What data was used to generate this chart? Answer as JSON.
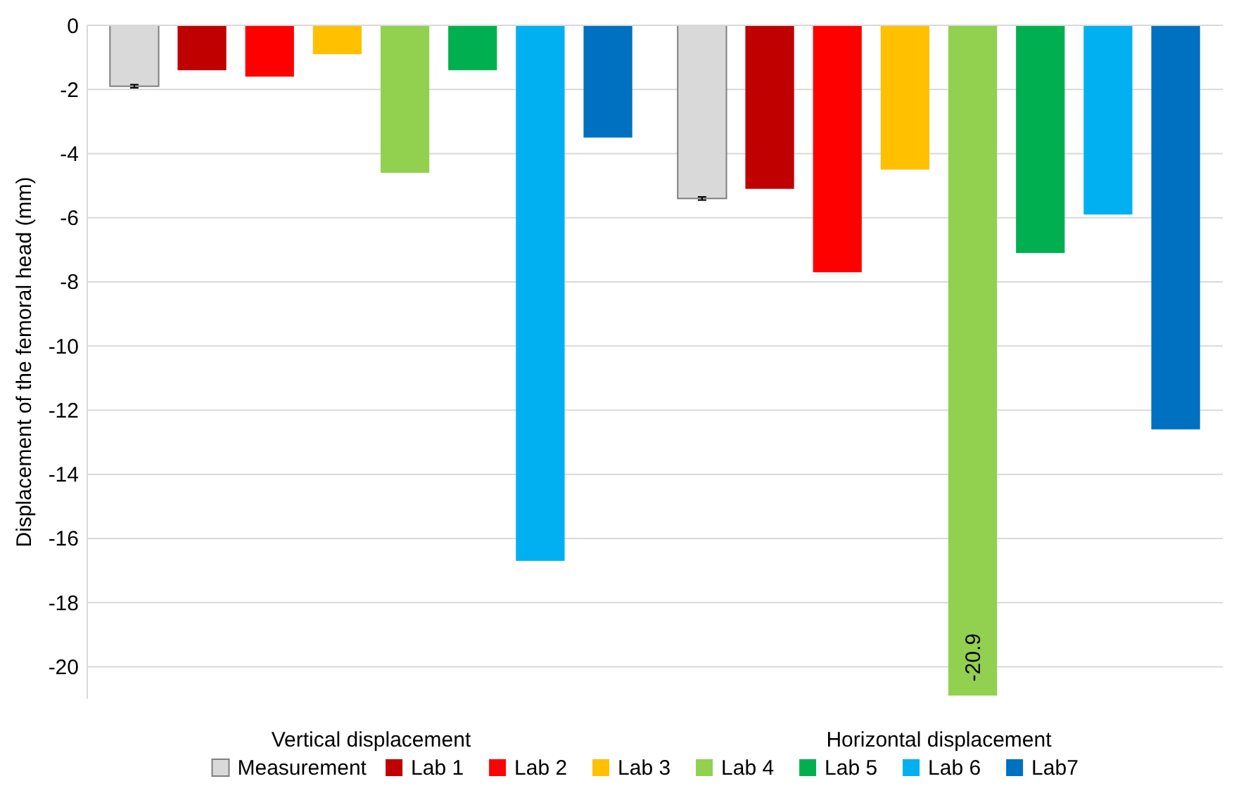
{
  "chart_data": {
    "type": "bar",
    "ylabel": "Displacement of the femoral head (mm)",
    "categories": [
      "Vertical displacement",
      "Horizontal displacement"
    ],
    "series": [
      {
        "name": "Measurement",
        "color": "#d9d9d9",
        "values": [
          -1.9,
          -5.4
        ],
        "errors": [
          0.05,
          0.05
        ]
      },
      {
        "name": "Lab 1",
        "color": "#c00000",
        "values": [
          -1.4,
          -5.1
        ]
      },
      {
        "name": "Lab 2",
        "color": "#ff0000",
        "values": [
          -1.6,
          -7.7
        ]
      },
      {
        "name": "Lab 3",
        "color": "#ffc000",
        "values": [
          -0.9,
          -4.5
        ]
      },
      {
        "name": "Lab 4",
        "color": "#92d050",
        "values": [
          -4.6,
          -20.9
        ],
        "value_labels": [
          null,
          "-20.9"
        ]
      },
      {
        "name": "Lab 5",
        "color": "#00b050",
        "values": [
          -1.4,
          -7.1
        ]
      },
      {
        "name": "Lab 6",
        "color": "#00b0f0",
        "values": [
          -16.7,
          -5.9
        ]
      },
      {
        "name": "Lab7",
        "color": "#0070c0",
        "values": [
          -3.5,
          -12.6
        ]
      }
    ],
    "ylim": [
      -21,
      0
    ],
    "yticks": [
      0,
      -2,
      -4,
      -6,
      -8,
      -10,
      -12,
      -14,
      -16,
      -18,
      -20
    ],
    "grid": "y",
    "legend": "bottom"
  }
}
